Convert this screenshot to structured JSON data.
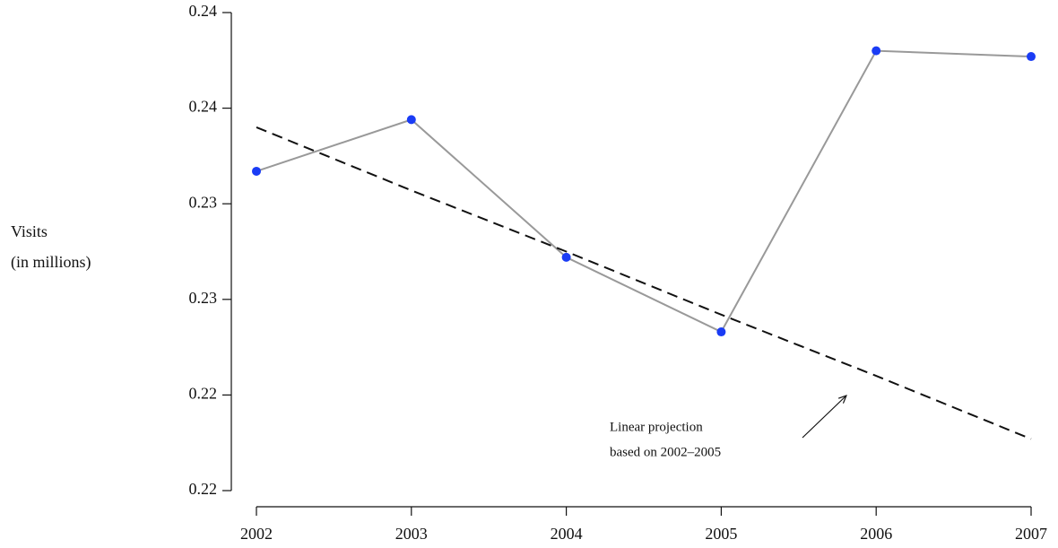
{
  "chart_data": {
    "type": "line",
    "ylabel": [
      "Visits",
      "(in millions)"
    ],
    "annotation": [
      "Linear projection",
      "based on 2002–2005"
    ],
    "x": [
      2002,
      2003,
      2004,
      2005,
      2006,
      2007
    ],
    "xlim": [
      2002,
      2007
    ],
    "xticks": [
      2002,
      2003,
      2004,
      2005,
      2006,
      2007
    ],
    "ylim": [
      0.215,
      0.24
    ],
    "yticks": [
      {
        "value": 0.215,
        "label": "0.22"
      },
      {
        "value": 0.22,
        "label": "0.22"
      },
      {
        "value": 0.225,
        "label": "0.23"
      },
      {
        "value": 0.23,
        "label": "0.23"
      },
      {
        "value": 0.235,
        "label": "0.24"
      },
      {
        "value": 0.24,
        "label": "0.24"
      }
    ],
    "grid": false,
    "series": [
      {
        "color": "#999999",
        "marker_color": "#1a3cf5",
        "values": [
          0.2317,
          0.2344,
          0.2272,
          0.2233,
          0.238,
          0.2377
        ]
      },
      {
        "color": "#111111",
        "dashed": true,
        "values": [
          0.234,
          0.2307,
          0.2275,
          0.2242,
          0.221,
          0.2177
        ]
      }
    ]
  }
}
